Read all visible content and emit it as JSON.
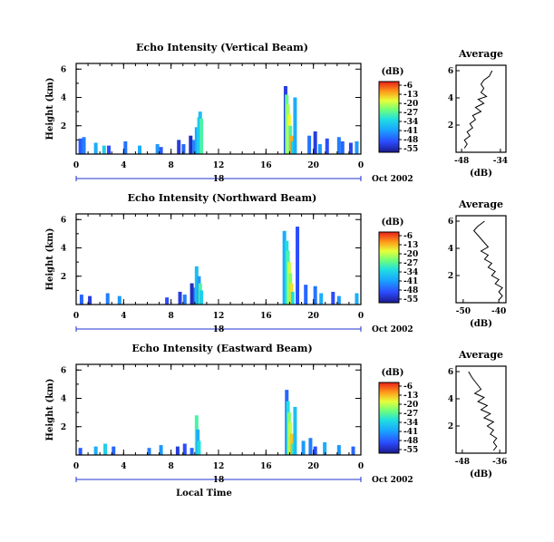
{
  "chart_data": [
    {
      "type": "heatmap",
      "title": "Echo Intensity (Vertical Beam)",
      "ylabel": "Height (km)",
      "y_ticks": [
        "2",
        "4",
        "6"
      ],
      "x_ticks": [
        "0",
        "4",
        "8",
        "12",
        "16",
        "20",
        "0"
      ],
      "day_label": "18",
      "date_label": "Oct 2002",
      "colorbar": {
        "unit": "(dB)",
        "ticks": [
          "-6",
          "-13",
          "-20",
          "-27",
          "-34",
          "-41",
          "-48",
          "-55"
        ]
      },
      "average": {
        "title": "Average",
        "xlabel": "(dB)",
        "x_ticks": [
          "-48",
          "-34"
        ],
        "y_ticks": [
          "2",
          "4",
          "6"
        ]
      },
      "hours": [
        [
          0.2,
          1.1,
          -47
        ],
        [
          0.5,
          1.2,
          -44
        ],
        [
          1.5,
          0.8,
          -40
        ],
        [
          2.2,
          0.6,
          -36
        ],
        [
          2.6,
          0.6,
          -48
        ],
        [
          4.0,
          0.9,
          -45
        ],
        [
          5.2,
          0.6,
          -40
        ],
        [
          6.7,
          0.7,
          -42
        ],
        [
          7.0,
          0.5,
          -47
        ],
        [
          8.5,
          1.0,
          -50
        ],
        [
          8.9,
          0.7,
          -46
        ],
        [
          9.5,
          1.3,
          -52
        ],
        [
          9.8,
          1.0,
          -44
        ],
        [
          10.0,
          1.9,
          -40
        ],
        [
          10.2,
          2.6,
          -34
        ],
        [
          10.3,
          3.0,
          -38
        ],
        [
          10.4,
          2.5,
          -30
        ],
        [
          17.5,
          4.8,
          -50
        ],
        [
          17.6,
          4.2,
          -28
        ],
        [
          17.7,
          3.5,
          -24
        ],
        [
          17.8,
          2.8,
          -20
        ],
        [
          17.9,
          2.0,
          -30
        ],
        [
          18.0,
          1.3,
          -14
        ],
        [
          18.1,
          0.9,
          -36
        ],
        [
          18.3,
          4.0,
          -40
        ],
        [
          19.5,
          1.3,
          -45
        ],
        [
          20.0,
          1.6,
          -50
        ],
        [
          20.4,
          0.7,
          -42
        ],
        [
          21.0,
          1.1,
          -48
        ],
        [
          22.0,
          1.2,
          -44
        ],
        [
          22.3,
          0.9,
          -46
        ],
        [
          23.0,
          0.8,
          -49
        ],
        [
          23.5,
          0.9,
          -42
        ]
      ],
      "profile": [
        [
          -37,
          6.0
        ],
        [
          -38,
          5.6
        ],
        [
          -40,
          5.3
        ],
        [
          -41,
          5.0
        ],
        [
          -40,
          4.7
        ],
        [
          -41,
          4.4
        ],
        [
          -39,
          4.1
        ],
        [
          -42,
          3.9
        ],
        [
          -40,
          3.6
        ],
        [
          -43,
          3.3
        ],
        [
          -41,
          3.0
        ],
        [
          -44,
          2.7
        ],
        [
          -43,
          2.4
        ],
        [
          -45,
          2.1
        ],
        [
          -44,
          1.8
        ],
        [
          -46,
          1.5
        ],
        [
          -45,
          1.2
        ],
        [
          -47,
          0.9
        ],
        [
          -46,
          0.6
        ],
        [
          -47,
          0.3
        ]
      ]
    },
    {
      "type": "heatmap",
      "title": "Echo Intensity (Northward Beam)",
      "ylabel": "Height (km)",
      "y_ticks": [
        "2",
        "4",
        "6"
      ],
      "x_ticks": [
        "0",
        "4",
        "8",
        "12",
        "16",
        "20",
        "0"
      ],
      "day_label": "18",
      "date_label": "Oct 2002",
      "colorbar": {
        "unit": "(dB)",
        "ticks": [
          "-6",
          "-13",
          "-20",
          "-27",
          "-34",
          "-41",
          "-48",
          "-55"
        ]
      },
      "average": {
        "title": "Average",
        "xlabel": "(dB)",
        "x_ticks": [
          "-50",
          "-40"
        ],
        "y_ticks": [
          "2",
          "4",
          "6"
        ]
      },
      "hours": [
        [
          0.3,
          0.7,
          -46
        ],
        [
          1.0,
          0.6,
          -50
        ],
        [
          2.5,
          0.8,
          -44
        ],
        [
          3.5,
          0.6,
          -42
        ],
        [
          7.5,
          0.5,
          -48
        ],
        [
          8.6,
          0.9,
          -50
        ],
        [
          9.0,
          0.7,
          -44
        ],
        [
          9.6,
          1.5,
          -52
        ],
        [
          9.9,
          1.2,
          -44
        ],
        [
          10.0,
          2.7,
          -38
        ],
        [
          10.2,
          2.0,
          -42
        ],
        [
          10.3,
          1.5,
          -30
        ],
        [
          10.4,
          1.0,
          -36
        ],
        [
          17.4,
          5.2,
          -40
        ],
        [
          17.6,
          4.5,
          -34
        ],
        [
          17.7,
          3.8,
          -30
        ],
        [
          17.8,
          3.0,
          -22
        ],
        [
          17.9,
          2.2,
          -26
        ],
        [
          18.0,
          1.5,
          -18
        ],
        [
          18.1,
          0.9,
          -34
        ],
        [
          18.5,
          5.5,
          -48
        ],
        [
          19.2,
          1.4,
          -46
        ],
        [
          20.0,
          1.3,
          -45
        ],
        [
          20.5,
          0.8,
          -40
        ],
        [
          21.5,
          0.9,
          -48
        ],
        [
          22.0,
          0.6,
          -42
        ],
        [
          23.5,
          0.8,
          -40
        ]
      ],
      "profile": [
        [
          -44,
          6.0
        ],
        [
          -46,
          5.6
        ],
        [
          -47,
          5.3
        ],
        [
          -46,
          5.0
        ],
        [
          -45,
          4.7
        ],
        [
          -44,
          4.4
        ],
        [
          -43,
          4.1
        ],
        [
          -45,
          3.8
        ],
        [
          -43,
          3.5
        ],
        [
          -44,
          3.2
        ],
        [
          -42,
          2.9
        ],
        [
          -43,
          2.6
        ],
        [
          -41,
          2.3
        ],
        [
          -42,
          2.0
        ],
        [
          -40,
          1.7
        ],
        [
          -41,
          1.4
        ],
        [
          -39,
          1.1
        ],
        [
          -40,
          0.8
        ],
        [
          -39,
          0.5
        ],
        [
          -40,
          0.2
        ]
      ]
    },
    {
      "type": "heatmap",
      "title": "Echo Intensity (Eastward Beam)",
      "ylabel": "Height (km)",
      "y_ticks": [
        "2",
        "4",
        "6"
      ],
      "x_ticks": [
        "0",
        "4",
        "8",
        "12",
        "16",
        "20",
        "0"
      ],
      "day_label": "18",
      "date_label": "Oct 2002",
      "xlabel": "Local Time",
      "colorbar": {
        "unit": "(dB)",
        "ticks": [
          "-6",
          "-13",
          "-20",
          "-27",
          "-34",
          "-41",
          "-48",
          "-55"
        ]
      },
      "average": {
        "title": "Average",
        "xlabel": "(dB)",
        "x_ticks": [
          "-48",
          "-36"
        ],
        "y_ticks": [
          "2",
          "4",
          "6"
        ]
      },
      "hours": [
        [
          0.2,
          0.5,
          -47
        ],
        [
          1.5,
          0.6,
          -40
        ],
        [
          2.3,
          0.8,
          -36
        ],
        [
          3.0,
          0.6,
          -46
        ],
        [
          6.0,
          0.5,
          -44
        ],
        [
          7.0,
          0.7,
          -42
        ],
        [
          8.4,
          0.6,
          -50
        ],
        [
          9.0,
          0.8,
          -48
        ],
        [
          9.6,
          0.5,
          -46
        ],
        [
          10.0,
          2.8,
          -30
        ],
        [
          10.1,
          1.8,
          -40
        ],
        [
          10.2,
          1.0,
          -34
        ],
        [
          17.6,
          4.6,
          -46
        ],
        [
          17.7,
          3.8,
          -34
        ],
        [
          17.8,
          3.0,
          -26
        ],
        [
          17.9,
          2.3,
          -22
        ],
        [
          18.0,
          1.5,
          -16
        ],
        [
          18.1,
          0.8,
          -32
        ],
        [
          18.3,
          3.4,
          -38
        ],
        [
          19.0,
          1.0,
          -42
        ],
        [
          19.6,
          1.2,
          -44
        ],
        [
          20.0,
          0.6,
          -48
        ],
        [
          20.8,
          0.9,
          -40
        ],
        [
          22.0,
          0.7,
          -42
        ],
        [
          23.2,
          0.6,
          -46
        ]
      ],
      "profile": [
        [
          -46,
          6.0
        ],
        [
          -45,
          5.6
        ],
        [
          -44,
          5.3
        ],
        [
          -43,
          5.0
        ],
        [
          -42,
          4.7
        ],
        [
          -44,
          4.4
        ],
        [
          -41,
          4.1
        ],
        [
          -43,
          3.8
        ],
        [
          -40,
          3.5
        ],
        [
          -42,
          3.2
        ],
        [
          -39,
          2.9
        ],
        [
          -41,
          2.6
        ],
        [
          -38,
          2.3
        ],
        [
          -40,
          2.0
        ],
        [
          -38,
          1.7
        ],
        [
          -39,
          1.4
        ],
        [
          -37,
          1.1
        ],
        [
          -38,
          0.8
        ],
        [
          -37,
          0.5
        ],
        [
          -38,
          0.2
        ]
      ]
    }
  ]
}
